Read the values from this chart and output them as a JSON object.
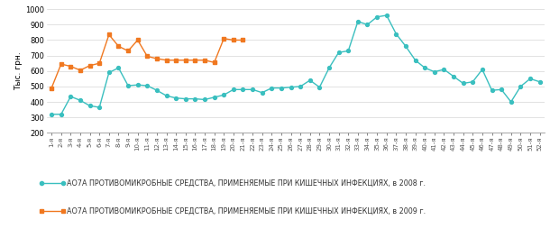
{
  "weeks_2008": [
    1,
    2,
    3,
    4,
    5,
    6,
    7,
    8,
    9,
    10,
    11,
    12,
    13,
    14,
    15,
    16,
    17,
    18,
    19,
    20,
    21,
    22,
    23,
    24,
    25,
    26,
    27,
    28,
    29,
    30,
    31,
    32,
    33,
    34,
    35,
    36,
    37,
    38,
    39,
    40,
    41,
    42,
    43,
    44,
    45,
    46,
    47,
    48,
    49,
    50,
    51,
    52
  ],
  "values_2008": [
    320,
    320,
    435,
    410,
    375,
    365,
    590,
    620,
    505,
    510,
    505,
    475,
    440,
    425,
    420,
    420,
    415,
    430,
    445,
    480,
    480,
    480,
    460,
    490,
    490,
    495,
    500,
    540,
    495,
    620,
    720,
    730,
    920,
    900,
    950,
    960,
    840,
    760,
    670,
    620,
    595,
    610,
    565,
    520,
    530,
    610,
    475,
    480,
    400,
    500,
    550,
    530
  ],
  "weeks_2009": [
    1,
    2,
    3,
    4,
    5,
    6,
    7,
    8,
    9,
    10,
    11,
    12,
    13,
    14,
    15,
    16,
    17,
    18,
    19,
    20,
    21
  ],
  "values_2009": [
    490,
    645,
    630,
    605,
    635,
    650,
    835,
    760,
    730,
    800,
    695,
    680,
    670,
    670,
    670,
    670,
    670,
    655,
    810,
    800,
    800
  ],
  "color_2008": "#3abfbf",
  "color_2009": "#f07820",
  "ylabel": "Тыс. грн.",
  "ylim": [
    200,
    1000
  ],
  "yticks": [
    200,
    300,
    400,
    500,
    600,
    700,
    800,
    900,
    1000
  ],
  "legend_2008": "АО7А ПРОТИВОМИКРОБНЫЕ СРЕДСТВА, ПРИМЕНЯЕМЫЕ ПРИ КИШЕЧНЫХ ИНФЕКЦИЯХ, в 2008 г.",
  "legend_2009": "АО7А ПРОТИВОМИКРОБНЫЕ СРЕДСТВА, ПРИМЕНЯЕМЫЕ ПРИ КИШЕЧНЫХ ИНФЕКЦИЯХ, в 2009 г."
}
